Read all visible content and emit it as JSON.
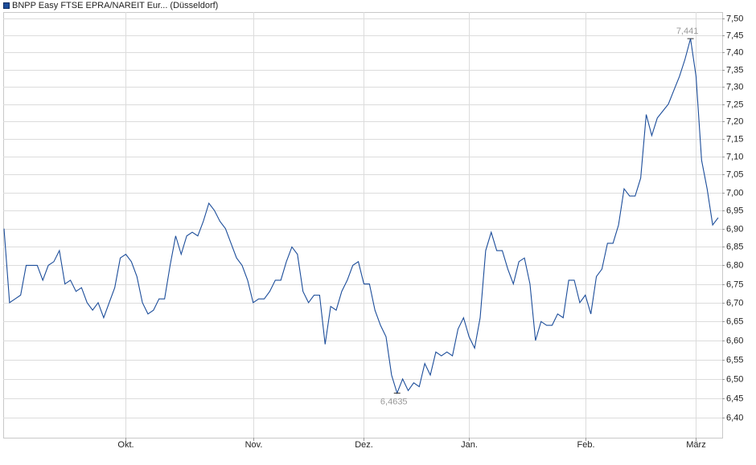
{
  "chart_data": {
    "type": "line",
    "categories": [
      null,
      null,
      null,
      null,
      null,
      null,
      null,
      null,
      null,
      null,
      null,
      null,
      null,
      null,
      null,
      null,
      null,
      null,
      null,
      null,
      null,
      null,
      "Okt.",
      null,
      null,
      null,
      null,
      null,
      null,
      null,
      null,
      null,
      null,
      null,
      null,
      null,
      null,
      null,
      null,
      null,
      null,
      null,
      null,
      null,
      null,
      "Nov.",
      null,
      null,
      null,
      null,
      null,
      null,
      null,
      null,
      null,
      null,
      null,
      null,
      null,
      null,
      null,
      null,
      null,
      null,
      null,
      "Dez.",
      null,
      null,
      null,
      null,
      null,
      null,
      null,
      null,
      null,
      null,
      null,
      null,
      null,
      null,
      null,
      null,
      null,
      null,
      "Jan.",
      null,
      null,
      null,
      null,
      null,
      null,
      null,
      null,
      null,
      null,
      null,
      null,
      null,
      null,
      null,
      null,
      null,
      null,
      null,
      null,
      "Feb.",
      null,
      null,
      null,
      null,
      null,
      null,
      null,
      null,
      null,
      null,
      null,
      null,
      null,
      null,
      null,
      null,
      null,
      null,
      null,
      "März",
      null,
      null,
      null,
      null
    ],
    "series": [
      {
        "name": "BNPP Easy FTSE EPRA/NAREIT Eur... (Düsseldorf)",
        "color": "#1c4d9a",
        "values": [
          6.9,
          6.7,
          6.71,
          6.72,
          6.8,
          6.8,
          6.8,
          6.76,
          6.8,
          6.81,
          6.84,
          6.75,
          6.76,
          6.73,
          6.74,
          6.7,
          6.68,
          6.7,
          6.66,
          6.7,
          6.74,
          6.82,
          6.83,
          6.81,
          6.77,
          6.7,
          6.67,
          6.68,
          6.71,
          6.71,
          6.8,
          6.88,
          6.83,
          6.88,
          6.89,
          6.88,
          6.92,
          6.97,
          6.95,
          6.92,
          6.9,
          6.86,
          6.82,
          6.8,
          6.76,
          6.7,
          6.71,
          6.71,
          6.73,
          6.76,
          6.76,
          6.81,
          6.85,
          6.83,
          6.73,
          6.7,
          6.72,
          6.72,
          6.59,
          6.69,
          6.68,
          6.73,
          6.76,
          6.8,
          6.81,
          6.75,
          6.75,
          6.68,
          6.64,
          6.61,
          6.51,
          6.4635,
          6.5,
          6.47,
          6.49,
          6.48,
          6.54,
          6.51,
          6.57,
          6.56,
          6.57,
          6.56,
          6.63,
          6.66,
          6.61,
          6.58,
          6.66,
          6.84,
          6.89,
          6.84,
          6.84,
          6.79,
          6.75,
          6.81,
          6.82,
          6.75,
          6.6,
          6.65,
          6.64,
          6.64,
          6.67,
          6.66,
          6.76,
          6.76,
          6.7,
          6.72,
          6.67,
          6.77,
          6.79,
          6.86,
          6.86,
          6.91,
          7.01,
          6.99,
          6.99,
          7.04,
          7.22,
          7.16,
          7.21,
          7.23,
          7.25,
          7.29,
          7.33,
          7.38,
          7.441,
          7.33,
          7.09,
          7.01,
          6.91,
          6.93
        ],
        "value_labels": [
          null,
          null,
          null,
          null,
          null,
          null,
          null,
          null,
          null,
          null,
          null,
          null,
          null,
          null,
          null,
          null,
          null,
          null,
          null,
          null,
          null,
          null,
          null,
          null,
          null,
          null,
          null,
          null,
          null,
          null,
          null,
          null,
          null,
          null,
          null,
          null,
          null,
          null,
          null,
          null,
          null,
          null,
          null,
          null,
          null,
          null,
          null,
          null,
          null,
          null,
          null,
          null,
          null,
          null,
          null,
          null,
          null,
          null,
          null,
          null,
          null,
          null,
          null,
          null,
          null,
          null,
          null,
          null,
          null,
          null,
          null,
          "6,4635",
          null,
          null,
          null,
          null,
          null,
          null,
          null,
          null,
          null,
          null,
          null,
          null,
          null,
          null,
          null,
          null,
          null,
          null,
          null,
          null,
          null,
          null,
          null,
          null,
          null,
          null,
          null,
          null,
          null,
          null,
          null,
          null,
          null,
          null,
          null,
          null,
          null,
          null,
          null,
          null,
          null,
          null,
          null,
          null,
          null,
          null,
          null,
          null,
          null,
          null,
          null,
          null,
          "7,441",
          null,
          null,
          null,
          null,
          null
        ]
      }
    ],
    "ylim": [
      6.35,
      7.52
    ],
    "log_scale": true,
    "grid": true,
    "legend": "top-left",
    "yticks": [
      {
        "value": 6.4,
        "label": "6,40"
      },
      {
        "value": 6.45,
        "label": "6,45"
      },
      {
        "value": 6.5,
        "label": "6,50"
      },
      {
        "value": 6.55,
        "label": "6,55"
      },
      {
        "value": 6.6,
        "label": "6,60"
      },
      {
        "value": 6.65,
        "label": "6,65"
      },
      {
        "value": 6.7,
        "label": "6,70"
      },
      {
        "value": 6.75,
        "label": "6,75"
      },
      {
        "value": 6.8,
        "label": "6,80"
      },
      {
        "value": 6.85,
        "label": "6,85"
      },
      {
        "value": 6.9,
        "label": "6,90"
      },
      {
        "value": 6.95,
        "label": "6,95"
      },
      {
        "value": 7.0,
        "label": "7,00"
      },
      {
        "value": 7.05,
        "label": "7,05"
      },
      {
        "value": 7.1,
        "label": "7,10"
      },
      {
        "value": 7.15,
        "label": "7,15"
      },
      {
        "value": 7.2,
        "label": "7,20"
      },
      {
        "value": 7.25,
        "label": "7,25"
      },
      {
        "value": 7.3,
        "label": "7,30"
      },
      {
        "value": 7.35,
        "label": "7,35"
      },
      {
        "value": 7.4,
        "label": "7,40"
      },
      {
        "value": 7.45,
        "label": "7,45"
      },
      {
        "value": 7.5,
        "label": "7,50"
      }
    ]
  }
}
